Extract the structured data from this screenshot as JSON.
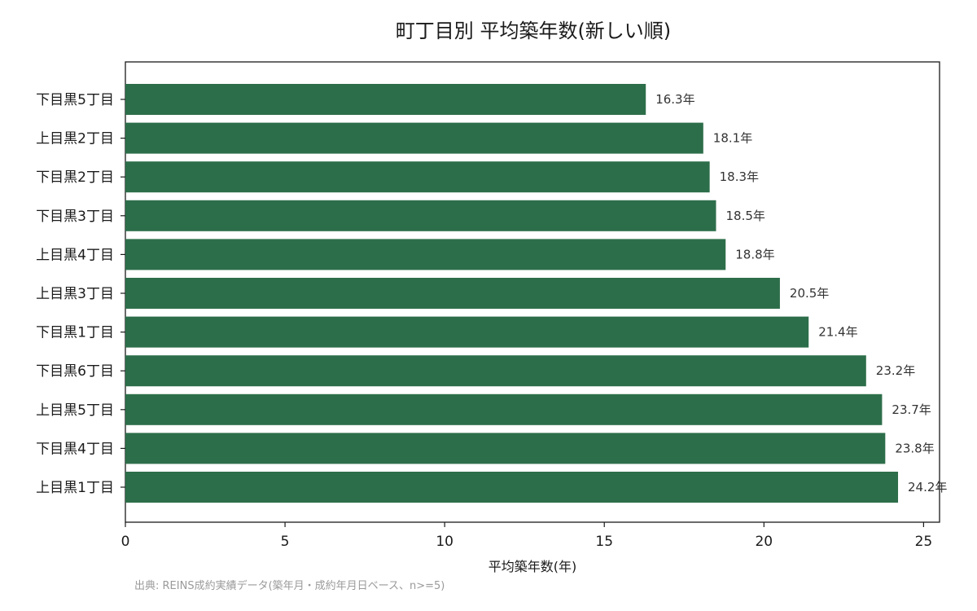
{
  "chart_data": {
    "type": "bar",
    "orientation": "horizontal",
    "title": "町丁目別 平均築年数(新しい順)",
    "xlabel": "平均築年数(年)",
    "ylabel": "",
    "xlim": [
      0,
      25.5
    ],
    "xticks": [
      0,
      5,
      10,
      15,
      20,
      25
    ],
    "value_suffix": "年",
    "bar_color": "#2d6e4a",
    "grid": false,
    "categories": [
      "下目黒5丁目",
      "上目黒2丁目",
      "下目黒2丁目",
      "下目黒3丁目",
      "上目黒4丁目",
      "上目黒3丁目",
      "下目黒1丁目",
      "下目黒6丁目",
      "上目黒5丁目",
      "下目黒4丁目",
      "上目黒1丁目"
    ],
    "values": [
      16.3,
      18.1,
      18.3,
      18.5,
      18.8,
      20.5,
      21.4,
      23.2,
      23.7,
      23.8,
      24.2
    ],
    "source_note": "出典: REINS成約実績データ(築年月・成約年月日ベース、n>=5)"
  }
}
